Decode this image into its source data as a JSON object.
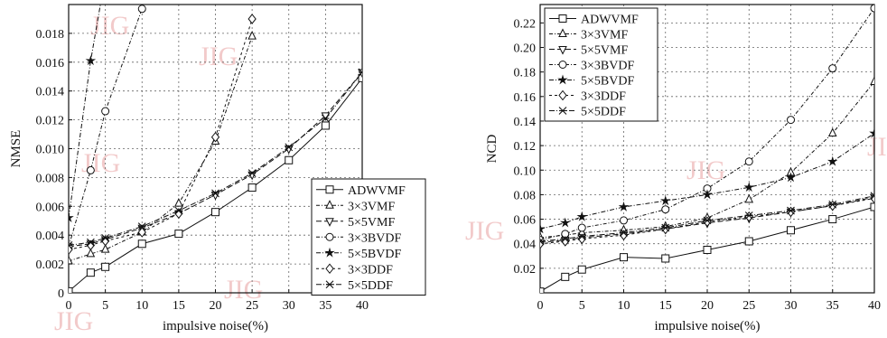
{
  "watermark": "JIG",
  "chart_data": [
    {
      "type": "line",
      "xlabel": "impulsive noise(%)",
      "ylabel": "NMSE",
      "xlim": [
        0,
        40
      ],
      "ylim": [
        0,
        0.02
      ],
      "xticks": [
        0,
        5,
        10,
        15,
        20,
        25,
        30,
        35,
        40
      ],
      "yticks": [
        0,
        0.002,
        0.004,
        0.006,
        0.008,
        0.01,
        0.012,
        0.014,
        0.016,
        0.018
      ],
      "ytick_labels": [
        "0",
        "0.002",
        "0.004",
        "0.006",
        "0.008",
        "0.010",
        "0.012",
        "0.014",
        "0.016",
        "0.018"
      ],
      "grid": true,
      "legend_position": "lower-right",
      "series": [
        {
          "name": "ADWVMF",
          "marker": "square",
          "dash": "",
          "x": [
            0,
            3,
            5,
            10,
            15,
            20,
            25,
            30,
            35,
            40
          ],
          "y": [
            0.0001,
            0.0014,
            0.0018,
            0.0034,
            0.0041,
            0.0056,
            0.0073,
            0.0092,
            0.0116,
            0.0149
          ]
        },
        {
          "name": "3×3VMF",
          "marker": "triangle-up",
          "dash": "4,2,1,2",
          "x": [
            0,
            3,
            5,
            10,
            15,
            20,
            25
          ],
          "y": [
            0.0022,
            0.0027,
            0.003,
            0.0042,
            0.0062,
            0.0105,
            0.0178
          ]
        },
        {
          "name": "5×5VMF",
          "marker": "triangle-down",
          "dash": "6,3",
          "x": [
            0,
            3,
            5,
            10,
            15,
            20,
            25,
            30,
            35,
            40
          ],
          "y": [
            0.0032,
            0.0034,
            0.0037,
            0.0045,
            0.0055,
            0.0068,
            0.0082,
            0.01,
            0.0123,
            0.0153
          ]
        },
        {
          "name": "3×3BVDF",
          "marker": "circle",
          "dash": "4,2,1,2",
          "x": [
            0,
            3,
            5,
            10
          ],
          "y": [
            0.0032,
            0.0085,
            0.0126,
            0.0197
          ]
        },
        {
          "name": "5×5BVDF",
          "marker": "star",
          "dash": "5,2,1,2",
          "x": [
            0,
            3,
            4.5
          ],
          "y": [
            0.0052,
            0.0161,
            0.0205
          ]
        },
        {
          "name": "3×3DDF",
          "marker": "diamond",
          "dash": "3,3",
          "x": [
            0,
            3,
            5,
            10,
            15,
            20,
            25
          ],
          "y": [
            0.003,
            0.0033,
            0.0036,
            0.0042,
            0.0055,
            0.0108,
            0.019
          ]
        },
        {
          "name": "5×5DDF",
          "marker": "x-cross",
          "dash": "6,2,1,2",
          "x": [
            0,
            3,
            5,
            10,
            15,
            20,
            25,
            30,
            35,
            40
          ],
          "y": [
            0.0033,
            0.0035,
            0.0038,
            0.0046,
            0.0057,
            0.0069,
            0.0083,
            0.0101,
            0.0121,
            0.0153
          ]
        }
      ]
    },
    {
      "type": "line",
      "xlabel": "impulsive noise(%)",
      "ylabel": "NCD",
      "xlim": [
        0,
        40
      ],
      "ylim": [
        0,
        0.235
      ],
      "xticks": [
        0,
        5,
        10,
        15,
        20,
        25,
        30,
        35,
        40
      ],
      "yticks": [
        0.02,
        0.04,
        0.06,
        0.08,
        0.1,
        0.12,
        0.14,
        0.16,
        0.18,
        0.2,
        0.22
      ],
      "ytick_labels": [
        "0.02",
        "0.04",
        "0.06",
        "0.08",
        "0.10",
        "0.12",
        "0.14",
        "0.16",
        "0.18",
        "0.20",
        "0.22"
      ],
      "grid": true,
      "legend_position": "top-left",
      "series": [
        {
          "name": "ADWVMF",
          "marker": "square",
          "dash": "",
          "x": [
            0,
            3,
            5,
            10,
            15,
            20,
            25,
            30,
            35,
            40
          ],
          "y": [
            0.001,
            0.013,
            0.019,
            0.029,
            0.028,
            0.035,
            0.042,
            0.051,
            0.06,
            0.07
          ]
        },
        {
          "name": "3×3VMF",
          "marker": "triangle-up",
          "dash": "4,2,1,2",
          "x": [
            0,
            3,
            5,
            10,
            15,
            20,
            25,
            30,
            35,
            40
          ],
          "y": [
            0.045,
            0.047,
            0.049,
            0.051,
            0.054,
            0.061,
            0.076,
            0.098,
            0.13,
            0.172
          ]
        },
        {
          "name": "5×5VMF",
          "marker": "triangle-down",
          "dash": "6,3",
          "x": [
            0,
            3,
            5,
            10,
            15,
            20,
            25,
            30,
            35,
            40
          ],
          "y": [
            0.041,
            0.043,
            0.045,
            0.048,
            0.052,
            0.057,
            0.061,
            0.066,
            0.071,
            0.078
          ]
        },
        {
          "name": "3×3BVDF",
          "marker": "circle",
          "dash": "4,2,1,2",
          "x": [
            0,
            3,
            5,
            10,
            15,
            20,
            25,
            30,
            35,
            40
          ],
          "y": [
            0.043,
            0.048,
            0.053,
            0.059,
            0.068,
            0.085,
            0.107,
            0.141,
            0.183,
            0.232
          ]
        },
        {
          "name": "5×5BVDF",
          "marker": "star",
          "dash": "5,2,1,2",
          "x": [
            0,
            3,
            5,
            10,
            15,
            20,
            25,
            30,
            35,
            40
          ],
          "y": [
            0.052,
            0.057,
            0.062,
            0.07,
            0.075,
            0.08,
            0.086,
            0.094,
            0.107,
            0.13
          ]
        },
        {
          "name": "3×3DDF",
          "marker": "diamond",
          "dash": "3,3",
          "x": [
            0,
            3,
            5,
            10,
            15,
            20,
            25,
            30,
            35,
            40
          ],
          "y": [
            0.04,
            0.042,
            0.044,
            0.047,
            0.052,
            0.058,
            0.062,
            0.066,
            0.071,
            0.077
          ]
        },
        {
          "name": "5×5DDF",
          "marker": "x-cross",
          "dash": "6,2,1,2",
          "x": [
            0,
            3,
            5,
            10,
            15,
            20,
            25,
            30,
            35,
            40
          ],
          "y": [
            0.042,
            0.044,
            0.046,
            0.049,
            0.053,
            0.059,
            0.063,
            0.067,
            0.072,
            0.079
          ]
        }
      ]
    }
  ]
}
